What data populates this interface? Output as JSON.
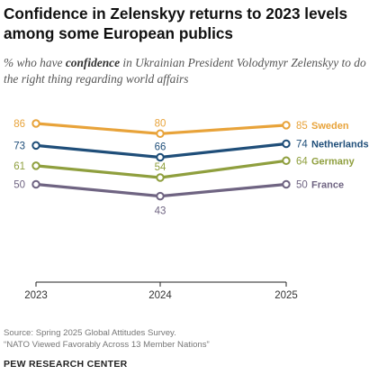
{
  "title": "Confidence in Zelenskyy returns to 2023 levels among some European publics",
  "subtitle": {
    "pre": "% who have ",
    "emph": "confidence",
    "post": " in Ukrainian President Volodymyr Zelenskyy to do the right thing regarding world affairs"
  },
  "source": "Source: Spring 2025 Global Attitudes Survey.",
  "report": "“NATO Viewed Favorably Across 13 Member Nations”",
  "brand": "PEW RESEARCH CENTER",
  "chart_data": {
    "type": "line",
    "x": [
      "2023",
      "2024",
      "2025"
    ],
    "series": [
      {
        "name": "Sweden",
        "values": [
          86,
          80,
          85
        ],
        "color": "#e8a33a"
      },
      {
        "name": "Netherlands",
        "values": [
          73,
          66,
          74
        ],
        "color": "#1f4e79"
      },
      {
        "name": "Germany",
        "values": [
          61,
          54,
          64
        ],
        "color": "#8f9f3e"
      },
      {
        "name": "France",
        "values": [
          50,
          43,
          50
        ],
        "color": "#6f6482"
      }
    ],
    "grid": false,
    "legend": "labels at line ends (right)"
  }
}
